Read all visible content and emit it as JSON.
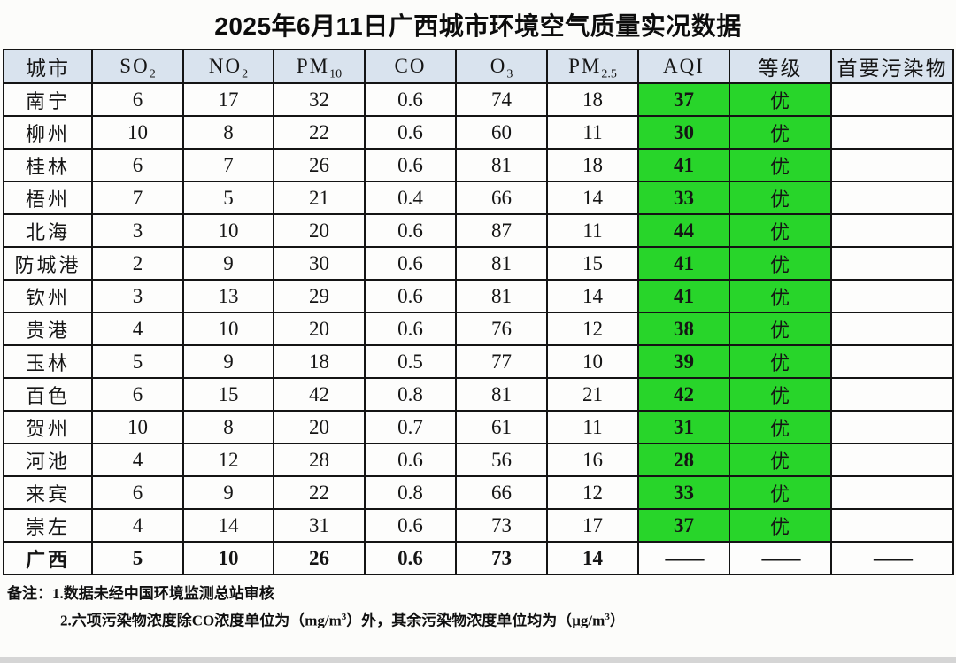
{
  "title": "2025年6月11日广西城市环境空气质量实况数据",
  "colors": {
    "aqi_green": "#28d52a",
    "header_bg": "#d9e3ee",
    "grade_excellent_text": "#141414"
  },
  "table": {
    "headers": [
      {
        "key": "city",
        "main": "城市",
        "sub": ""
      },
      {
        "key": "so2",
        "main": "SO",
        "sub": "2"
      },
      {
        "key": "no2",
        "main": "NO",
        "sub": "2"
      },
      {
        "key": "pm10",
        "main": "PM",
        "sub": "10"
      },
      {
        "key": "co",
        "main": "CO",
        "sub": ""
      },
      {
        "key": "o3",
        "main": "O",
        "sub": "3"
      },
      {
        "key": "pm25",
        "main": "PM",
        "sub": "2.5"
      },
      {
        "key": "aqi",
        "main": "AQI",
        "sub": ""
      },
      {
        "key": "grade",
        "main": "等级",
        "sub": ""
      },
      {
        "key": "primary",
        "main": "首要污染物",
        "sub": ""
      }
    ],
    "rows": [
      {
        "city": "南宁",
        "so2": "6",
        "no2": "17",
        "pm10": "32",
        "co": "0.6",
        "o3": "74",
        "pm25": "18",
        "aqi": "37",
        "grade": "优",
        "primary": ""
      },
      {
        "city": "柳州",
        "so2": "10",
        "no2": "8",
        "pm10": "22",
        "co": "0.6",
        "o3": "60",
        "pm25": "11",
        "aqi": "30",
        "grade": "优",
        "primary": ""
      },
      {
        "city": "桂林",
        "so2": "6",
        "no2": "7",
        "pm10": "26",
        "co": "0.6",
        "o3": "81",
        "pm25": "18",
        "aqi": "41",
        "grade": "优",
        "primary": ""
      },
      {
        "city": "梧州",
        "so2": "7",
        "no2": "5",
        "pm10": "21",
        "co": "0.4",
        "o3": "66",
        "pm25": "14",
        "aqi": "33",
        "grade": "优",
        "primary": ""
      },
      {
        "city": "北海",
        "so2": "3",
        "no2": "10",
        "pm10": "20",
        "co": "0.6",
        "o3": "87",
        "pm25": "11",
        "aqi": "44",
        "grade": "优",
        "primary": ""
      },
      {
        "city": "防城港",
        "so2": "2",
        "no2": "9",
        "pm10": "30",
        "co": "0.6",
        "o3": "81",
        "pm25": "15",
        "aqi": "41",
        "grade": "优",
        "primary": ""
      },
      {
        "city": "钦州",
        "so2": "3",
        "no2": "13",
        "pm10": "29",
        "co": "0.6",
        "o3": "81",
        "pm25": "14",
        "aqi": "41",
        "grade": "优",
        "primary": ""
      },
      {
        "city": "贵港",
        "so2": "4",
        "no2": "10",
        "pm10": "20",
        "co": "0.6",
        "o3": "76",
        "pm25": "12",
        "aqi": "38",
        "grade": "优",
        "primary": ""
      },
      {
        "city": "玉林",
        "so2": "5",
        "no2": "9",
        "pm10": "18",
        "co": "0.5",
        "o3": "77",
        "pm25": "10",
        "aqi": "39",
        "grade": "优",
        "primary": ""
      },
      {
        "city": "百色",
        "so2": "6",
        "no2": "15",
        "pm10": "42",
        "co": "0.8",
        "o3": "81",
        "pm25": "21",
        "aqi": "42",
        "grade": "优",
        "primary": ""
      },
      {
        "city": "贺州",
        "so2": "10",
        "no2": "8",
        "pm10": "20",
        "co": "0.7",
        "o3": "61",
        "pm25": "11",
        "aqi": "31",
        "grade": "优",
        "primary": ""
      },
      {
        "city": "河池",
        "so2": "4",
        "no2": "12",
        "pm10": "28",
        "co": "0.6",
        "o3": "56",
        "pm25": "16",
        "aqi": "28",
        "grade": "优",
        "primary": ""
      },
      {
        "city": "来宾",
        "so2": "6",
        "no2": "9",
        "pm10": "22",
        "co": "0.8",
        "o3": "66",
        "pm25": "12",
        "aqi": "33",
        "grade": "优",
        "primary": ""
      },
      {
        "city": "崇左",
        "so2": "4",
        "no2": "14",
        "pm10": "31",
        "co": "0.6",
        "o3": "73",
        "pm25": "17",
        "aqi": "37",
        "grade": "优",
        "primary": ""
      }
    ],
    "summary": {
      "city": "广西",
      "so2": "5",
      "no2": "10",
      "pm10": "26",
      "co": "0.6",
      "o3": "73",
      "pm25": "14",
      "aqi": "——",
      "grade": "——",
      "primary": "——"
    }
  },
  "notes": {
    "line1": "备注：1.数据未经中国环境监测总站审核",
    "line2_parts": {
      "p1": "2.六项污染物浓度除CO浓度单位为（mg/m",
      "sup1": "3",
      "p2": "）外，其余污染物浓度单位均为（μg/m",
      "sup2": "3",
      "p3": "）"
    }
  }
}
